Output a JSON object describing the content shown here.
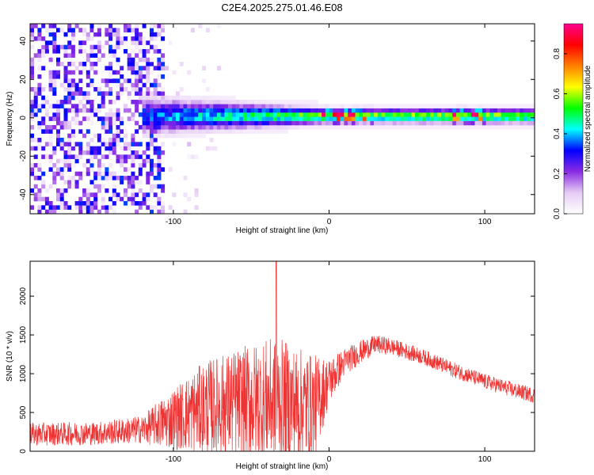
{
  "title": "C2E4.2025.275.01.46.E08",
  "chart_data": [
    {
      "type": "heatmap",
      "name": "spectrogram",
      "xlabel": "Height of straight line (km)",
      "ylabel": "Frequency (Hz)",
      "xlim": [
        -192,
        132
      ],
      "ylim": [
        -50,
        49
      ],
      "xticks": [
        -100,
        0,
        100
      ],
      "xtick_labels": [
        "-100",
        "0",
        "100"
      ],
      "yticks": [
        -40,
        -20,
        0,
        20,
        40
      ],
      "ytick_labels": [
        "-40",
        "-20",
        "0",
        "20",
        "40"
      ],
      "colorbar": {
        "label": "Normalized spectral amplitude",
        "range": [
          0.0,
          0.95
        ],
        "ticks": [
          0.0,
          0.2,
          0.4,
          0.6,
          0.8
        ],
        "tick_labels": [
          "0.0",
          "0.2",
          "0.4",
          "0.6",
          "0.8"
        ],
        "colormap": [
          "#ffffff",
          "#e6ccf5",
          "#8a2be2",
          "#0000ff",
          "#00ffff",
          "#00ff00",
          "#ffff00",
          "#ff8000",
          "#ff0000",
          "#ff0090"
        ]
      },
      "features": {
        "noise_region_x": [
          -192,
          -105
        ],
        "noise_amplitude": 0.35,
        "band_start_x": -120,
        "band_center_freq_hz": 1,
        "band_half_width_hz": [
          8,
          3
        ],
        "peak_amplitude_x_ranges": [
          [
            -5,
            30
          ],
          [
            80,
            100
          ]
        ]
      }
    },
    {
      "type": "line",
      "name": "snr",
      "xlabel": "Height of straight line (km)",
      "ylabel": "SNR (10 * v/v)",
      "xlim": [
        -192,
        132
      ],
      "ylim": [
        0,
        2450
      ],
      "xticks": [
        -100,
        0,
        100
      ],
      "xtick_labels": [
        "-100",
        "0",
        "100"
      ],
      "yticks": [
        0,
        500,
        1000,
        1500,
        2000
      ],
      "ytick_labels": [
        "0",
        "500",
        "1000",
        "1500",
        "2000"
      ],
      "color": "#ee3333",
      "envelope": {
        "x": [
          -192,
          -150,
          -120,
          -100,
          -80,
          -60,
          -40,
          -30,
          -10,
          0,
          10,
          20,
          30,
          40,
          60,
          80,
          100,
          120,
          132
        ],
        "mean": [
          220,
          230,
          280,
          420,
          560,
          620,
          650,
          640,
          550,
          900,
          1150,
          1280,
          1380,
          1350,
          1220,
          1050,
          900,
          780,
          720
        ],
        "spread": [
          150,
          150,
          180,
          400,
          600,
          700,
          800,
          800,
          700,
          300,
          180,
          150,
          120,
          110,
          100,
          100,
          100,
          100,
          100
        ]
      },
      "max_value": 2450,
      "max_at_x": -34
    }
  ]
}
